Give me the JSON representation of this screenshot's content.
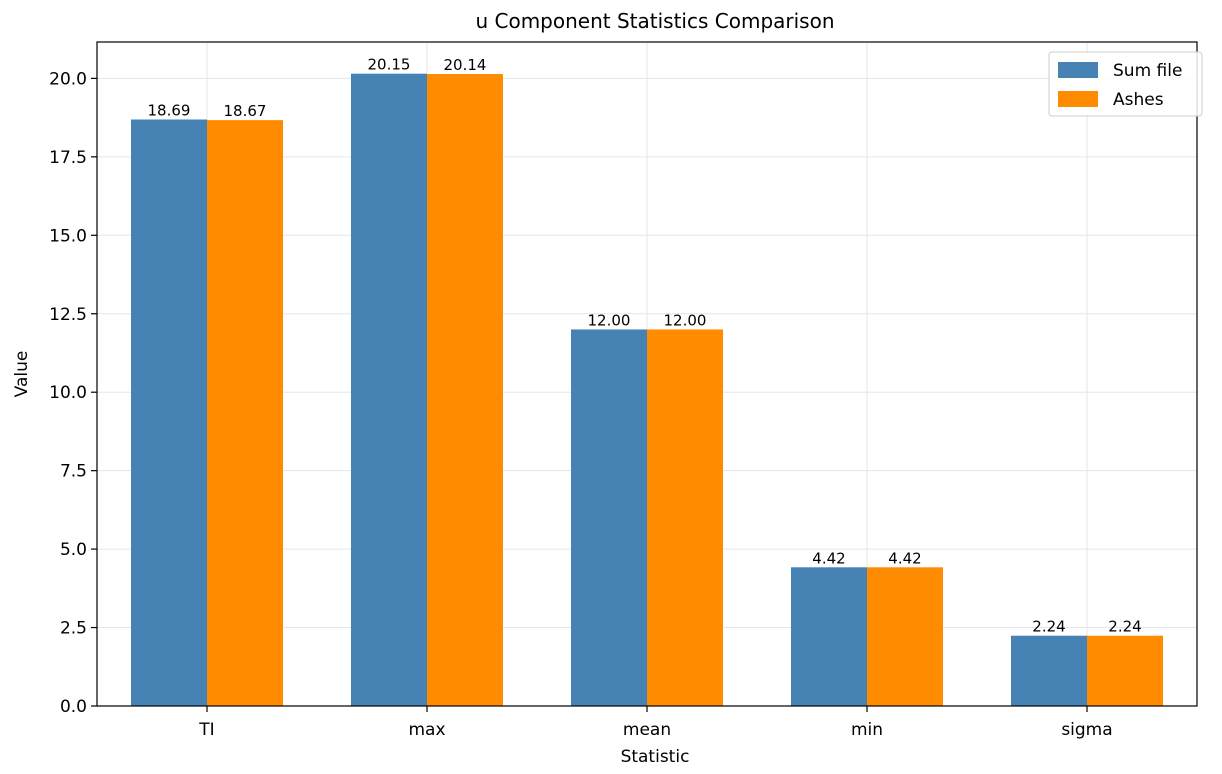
{
  "chart_data": {
    "type": "bar",
    "title": "u Component Statistics Comparison",
    "xlabel": "Statistic",
    "ylabel": "Value",
    "categories": [
      "TI",
      "max",
      "mean",
      "min",
      "sigma"
    ],
    "series": [
      {
        "name": "Sum file",
        "color": "#4682b4",
        "values": [
          18.69,
          20.15,
          12.0,
          4.42,
          2.24
        ],
        "labels": [
          "18.69",
          "20.15",
          "12.00",
          "4.42",
          "2.24"
        ]
      },
      {
        "name": "Ashes",
        "color": "#ff8c00",
        "values": [
          18.67,
          20.14,
          12.0,
          4.42,
          2.24
        ],
        "labels": [
          "18.67",
          "20.14",
          "12.00",
          "4.42",
          "2.24"
        ]
      }
    ],
    "ylim": [
      0,
      21.16
    ],
    "yticks": [
      0.0,
      2.5,
      5.0,
      7.5,
      10.0,
      12.5,
      15.0,
      17.5,
      20.0
    ],
    "ytick_labels": [
      "0.0",
      "2.5",
      "5.0",
      "7.5",
      "10.0",
      "12.5",
      "15.0",
      "17.5",
      "20.0"
    ],
    "grid": true,
    "legend_position": "top-right"
  }
}
